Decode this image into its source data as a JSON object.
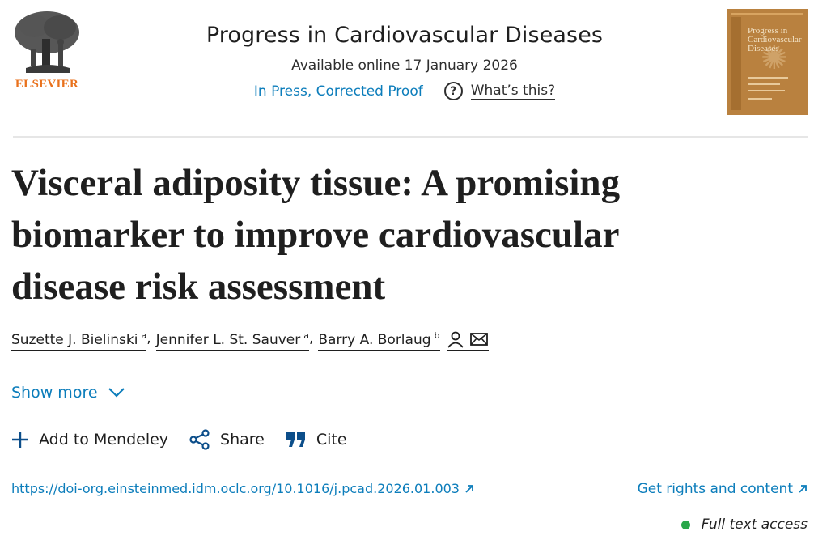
{
  "publisher": {
    "name": "ELSEVIER",
    "brand_color": "#e9711c",
    "logo_icon": "tree-logo-icon"
  },
  "journal": {
    "title": "Progress in Cardiovascular Diseases",
    "available": "Available online 17 January 2026",
    "status": "In Press, Corrected Proof",
    "help_label": "What’s this?",
    "help_icon": "question-circle-icon",
    "cover_title_line1": "Progress in",
    "cover_title_line2": "Cardiovascular",
    "cover_title_line3": "Diseases"
  },
  "article": {
    "title": "Visceral adiposity tissue: A promising biomarker to improve cardiovascular disease risk assessment",
    "authors": [
      {
        "name": "Suzette J. Bielinski",
        "sup": "a"
      },
      {
        "name": "Jennifer L. St. Sauver",
        "sup": "a"
      },
      {
        "name": "Barry A. Borlaug",
        "sup": "b"
      }
    ],
    "author_icons": [
      "person-icon",
      "envelope-icon"
    ]
  },
  "show_more": {
    "label": "Show more",
    "icon": "chevron-down-icon"
  },
  "actions": [
    {
      "label": "Add to Mendeley",
      "icon": "plus-icon"
    },
    {
      "label": "Share",
      "icon": "share-icon"
    },
    {
      "label": "Cite",
      "icon": "quote-icon"
    }
  ],
  "doi": {
    "text": "https://doi-org.einsteinmed.idm.oclc.org/10.1016/j.pcad.2026.01.003",
    "icon": "external-link-icon"
  },
  "rights": {
    "text": "Get rights and content",
    "icon": "external-link-icon"
  },
  "access": {
    "text": "Full text access",
    "color": "#29a74a"
  },
  "colors": {
    "link": "#0c7dbb",
    "text": "#1f1f1f"
  }
}
